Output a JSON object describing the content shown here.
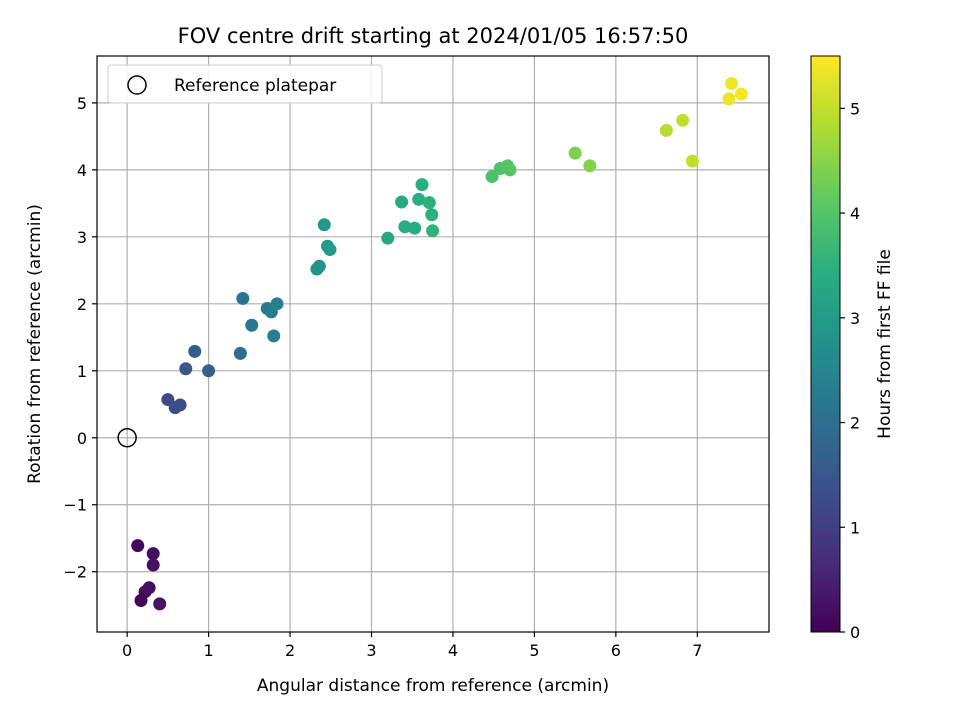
{
  "chart_data": {
    "type": "scatter",
    "title": "FOV centre drift starting at 2024/01/05 16:57:50",
    "xlabel": "Angular distance from reference (arcmin)",
    "ylabel": "Rotation from reference (arcmin)",
    "xlim": [
      -0.37,
      7.88
    ],
    "ylim": [
      -2.9,
      5.7
    ],
    "xticks": [
      0,
      1,
      2,
      3,
      4,
      5,
      6,
      7
    ],
    "yticks": [
      -2,
      -1,
      0,
      1,
      2,
      3,
      4,
      5
    ],
    "ytick_labels": [
      "−2",
      "−1",
      "0",
      "1",
      "2",
      "3",
      "4",
      "5"
    ],
    "grid": true,
    "legend": {
      "placement": "top-left",
      "entries": [
        "Reference platepar"
      ]
    },
    "reference_point": {
      "x": 0,
      "y": 0,
      "marker": "open-circle"
    },
    "colorbar": {
      "label": "Hours from first FF file",
      "colormap": "viridis",
      "range": [
        0,
        5.5
      ],
      "ticks": [
        0,
        1,
        2,
        3,
        4,
        5
      ]
    },
    "points": [
      {
        "x": 0.13,
        "y": -1.61,
        "c": 0.1
      },
      {
        "x": 0.32,
        "y": -1.73,
        "c": 0.2
      },
      {
        "x": 0.32,
        "y": -1.9,
        "c": 0.25
      },
      {
        "x": 0.22,
        "y": -2.3,
        "c": 0.15
      },
      {
        "x": 0.27,
        "y": -2.24,
        "c": 0.2
      },
      {
        "x": 0.17,
        "y": -2.43,
        "c": 0.1
      },
      {
        "x": 0.4,
        "y": -2.48,
        "c": 0.3
      },
      {
        "x": 0.5,
        "y": 0.57,
        "c": 1.2
      },
      {
        "x": 0.59,
        "y": 0.45,
        "c": 1.25
      },
      {
        "x": 0.65,
        "y": 0.49,
        "c": 1.3
      },
      {
        "x": 0.72,
        "y": 1.03,
        "c": 1.5
      },
      {
        "x": 0.83,
        "y": 1.29,
        "c": 1.6
      },
      {
        "x": 1.0,
        "y": 1.0,
        "c": 1.7
      },
      {
        "x": 1.39,
        "y": 1.26,
        "c": 2.0
      },
      {
        "x": 1.42,
        "y": 2.08,
        "c": 2.1
      },
      {
        "x": 1.53,
        "y": 1.68,
        "c": 2.15
      },
      {
        "x": 1.72,
        "y": 1.93,
        "c": 2.25
      },
      {
        "x": 1.77,
        "y": 1.88,
        "c": 2.3
      },
      {
        "x": 1.8,
        "y": 1.52,
        "c": 2.35
      },
      {
        "x": 1.84,
        "y": 2.0,
        "c": 2.4
      },
      {
        "x": 2.33,
        "y": 2.52,
        "c": 2.8
      },
      {
        "x": 2.36,
        "y": 2.56,
        "c": 2.85
      },
      {
        "x": 2.42,
        "y": 3.18,
        "c": 2.9
      },
      {
        "x": 2.46,
        "y": 2.86,
        "c": 2.95
      },
      {
        "x": 2.49,
        "y": 2.81,
        "c": 3.0
      },
      {
        "x": 3.2,
        "y": 2.98,
        "c": 3.3
      },
      {
        "x": 3.37,
        "y": 3.52,
        "c": 3.35
      },
      {
        "x": 3.41,
        "y": 3.15,
        "c": 3.4
      },
      {
        "x": 3.53,
        "y": 3.13,
        "c": 3.4
      },
      {
        "x": 3.58,
        "y": 3.56,
        "c": 3.45
      },
      {
        "x": 3.62,
        "y": 3.78,
        "c": 3.45
      },
      {
        "x": 3.71,
        "y": 3.51,
        "c": 3.5
      },
      {
        "x": 3.74,
        "y": 3.33,
        "c": 3.5
      },
      {
        "x": 3.75,
        "y": 3.09,
        "c": 3.55
      },
      {
        "x": 4.48,
        "y": 3.9,
        "c": 3.9
      },
      {
        "x": 4.58,
        "y": 4.02,
        "c": 3.95
      },
      {
        "x": 4.67,
        "y": 4.06,
        "c": 4.0
      },
      {
        "x": 4.7,
        "y": 4.0,
        "c": 4.0
      },
      {
        "x": 5.5,
        "y": 4.25,
        "c": 4.4
      },
      {
        "x": 5.68,
        "y": 4.06,
        "c": 4.45
      },
      {
        "x": 6.62,
        "y": 4.59,
        "c": 4.9
      },
      {
        "x": 6.82,
        "y": 4.74,
        "c": 4.95
      },
      {
        "x": 6.94,
        "y": 4.13,
        "c": 5.0
      },
      {
        "x": 7.39,
        "y": 5.06,
        "c": 5.35
      },
      {
        "x": 7.42,
        "y": 5.29,
        "c": 5.4
      },
      {
        "x": 7.54,
        "y": 5.13,
        "c": 5.45
      }
    ]
  }
}
